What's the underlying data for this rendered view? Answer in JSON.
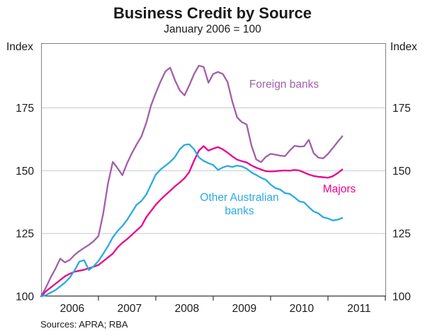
{
  "figure": {
    "title": "Business Credit by Source",
    "subtitle": "January 2006 = 100",
    "y_axis_label_left": "Index",
    "y_axis_label_right": "Index",
    "sources": "Sources: APRA; RBA"
  },
  "series_labels": {
    "foreign": "Foreign banks",
    "other": "Other Australian\nbanks",
    "majors": "Majors"
  },
  "colors": {
    "foreign_banks": "#A15FA8",
    "majors": "#E8008C",
    "other_australian_banks": "#29ABE2",
    "frame": "#828282",
    "axis": "#3a3a3a",
    "gridline": "#c9c9c9",
    "text": "#1a1a1a"
  },
  "chart_data": {
    "type": "line",
    "title": "Business Credit by Source",
    "subtitle": "January 2006 = 100",
    "xlabel": "",
    "ylabel": "Index",
    "ylim": [
      100,
      200.75
    ],
    "y_ticks": [
      100,
      125,
      150,
      175
    ],
    "x_tick_years": [
      "2006",
      "2007",
      "2008",
      "2009",
      "2010",
      "2011"
    ],
    "x_start": "2006-01",
    "x_end": "2011-04",
    "x_frequency": "monthly",
    "grid": "horizontal",
    "legend_position": "inline-annotations",
    "series": [
      {
        "name": "Foreign banks",
        "color": "#A15FA8",
        "values": [
          100,
          103.5,
          107.5,
          111,
          115,
          113.5,
          114.5,
          116.5,
          118,
          119.3,
          120.5,
          122,
          124,
          133,
          145,
          153.5,
          151,
          148.2,
          153,
          157,
          160.5,
          163.7,
          169,
          176,
          181,
          185.5,
          189.5,
          191,
          186,
          182,
          180,
          184,
          188.5,
          191.8,
          191.3,
          185,
          188.5,
          189.3,
          188.5,
          185.3,
          177.5,
          171.2,
          169.3,
          168.4,
          160,
          154.5,
          153.4,
          155.5,
          156.7,
          156.4,
          156,
          155.8,
          158,
          159.9,
          159.6,
          159.7,
          162.3,
          157,
          155.2,
          154.9,
          156.7,
          159,
          161.4,
          163.7
        ]
      },
      {
        "name": "Majors",
        "color": "#E8008C",
        "values": [
          100,
          102,
          103.5,
          105,
          106.5,
          108,
          109,
          109.8,
          110.2,
          110.6,
          111.2,
          111.8,
          112.5,
          114,
          115.5,
          117,
          119.5,
          121.3,
          122.8,
          124.5,
          126.3,
          128,
          131.5,
          134,
          136.5,
          138.5,
          140.3,
          142,
          143.8,
          145.3,
          147,
          149.5,
          154,
          158,
          159.8,
          158,
          158.8,
          159.4,
          158.5,
          157.2,
          155.7,
          154.4,
          153.8,
          153.3,
          152.1,
          151.2,
          150.5,
          149.8,
          149.7,
          149.8,
          150,
          150.1,
          150,
          150.3,
          150.1,
          149.3,
          148.5,
          147.9,
          147.6,
          147.4,
          147.2,
          147.8,
          149,
          150.5
        ]
      },
      {
        "name": "Other Australian banks",
        "color": "#29ABE2",
        "values": [
          100,
          100.5,
          101.5,
          102.5,
          104,
          105.5,
          107.5,
          110.3,
          113.8,
          114.4,
          110.5,
          112,
          114.1,
          117,
          120,
          123.5,
          126,
          128,
          130.5,
          133.5,
          136.5,
          138,
          140.5,
          144.5,
          148.5,
          150.5,
          152,
          153.5,
          155.5,
          158.5,
          160.3,
          160.5,
          158.5,
          155.3,
          153.9,
          153,
          152.3,
          150.3,
          151.3,
          151.9,
          151.5,
          152,
          151.7,
          150.8,
          149.3,
          148.3,
          147.2,
          146.4,
          144.5,
          143.1,
          142.5,
          141.1,
          140.8,
          139.4,
          137.8,
          137.4,
          135.5,
          133.8,
          133,
          131.5,
          131,
          130.2,
          130.5,
          131.2
        ]
      }
    ]
  }
}
